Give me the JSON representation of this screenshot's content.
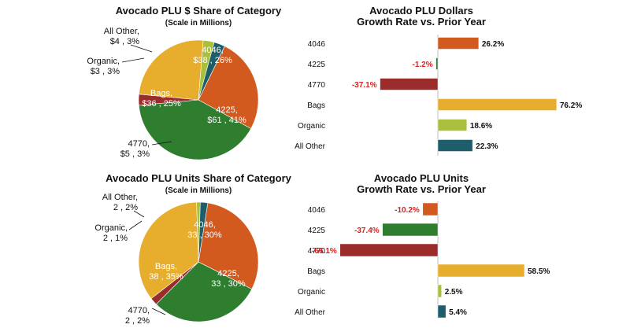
{
  "colors": {
    "4046": "#D35A1F",
    "4225": "#2F7D2F",
    "4770": "#9B2C2C",
    "Bags": "#E6AE2C",
    "Organic": "#A9C03C",
    "All Other": "#1E5E6B",
    "negative_text": "#E02020",
    "positive_text": "#111111"
  },
  "chart_data": [
    {
      "type": "pie",
      "title": "Avocado PLU $ Share of Category",
      "subtitle": "(Scale in Millions)",
      "slices": [
        {
          "name": "4046",
          "value": 38,
          "percent": 26,
          "label_line1": "4046,",
          "label_line2": "$38 , 26%"
        },
        {
          "name": "4225",
          "value": 61,
          "percent": 41,
          "label_line1": "4225,",
          "label_line2": "$61 , 41%"
        },
        {
          "name": "4770",
          "value": 5,
          "percent": 3,
          "label_line1": "4770,",
          "label_line2": "$5 , 3%"
        },
        {
          "name": "Bags",
          "value": 36,
          "percent": 25,
          "label_line1": "Bags,",
          "label_line2": "$36 , 25%"
        },
        {
          "name": "Organic",
          "value": 3,
          "percent": 3,
          "label_line1": "Organic,",
          "label_line2": "$3 , 3%"
        },
        {
          "name": "All Other",
          "value": 4,
          "percent": 3,
          "label_line1": "All Other,",
          "label_line2": "$4 , 3%"
        }
      ]
    },
    {
      "type": "bar",
      "orientation": "horizontal",
      "title_line1": "Avocado PLU Dollars",
      "title_line2": "Growth Rate vs. Prior Year",
      "categories": [
        "4046",
        "4225",
        "4770",
        "Bags",
        "Organic",
        "All Other"
      ],
      "values": [
        26.2,
        -1.2,
        -37.1,
        76.2,
        18.6,
        22.3
      ],
      "value_labels": [
        "26.2%",
        "-1.2%",
        "-37.1%",
        "76.2%",
        "18.6%",
        "22.3%"
      ]
    },
    {
      "type": "pie",
      "title": "Avocado PLU Units Share of Category",
      "subtitle": "(Scale in Millions)",
      "slices": [
        {
          "name": "4046",
          "value": 33,
          "percent": 30,
          "label_line1": "4046,",
          "label_line2": "33 , 30%"
        },
        {
          "name": "4225",
          "value": 33,
          "percent": 30,
          "label_line1": "4225,",
          "label_line2": "33 , 30%"
        },
        {
          "name": "4770",
          "value": 2,
          "percent": 2,
          "label_line1": "4770,",
          "label_line2": "2 , 2%"
        },
        {
          "name": "Bags",
          "value": 38,
          "percent": 35,
          "label_line1": "Bags,",
          "label_line2": "38 , 35%"
        },
        {
          "name": "Organic",
          "value": 2,
          "percent": 1,
          "label_line1": "Organic,",
          "label_line2": "2 , 1%"
        },
        {
          "name": "All Other",
          "value": 2,
          "percent": 2,
          "label_line1": "All Other,",
          "label_line2": "2 , 2%"
        }
      ]
    },
    {
      "type": "bar",
      "orientation": "horizontal",
      "title_line1": "Avocado PLU Units",
      "title_line2": "Growth Rate vs. Prior Year",
      "categories": [
        "4046",
        "4225",
        "4770",
        "Bags",
        "Organic",
        "All Other"
      ],
      "values": [
        -10.2,
        -37.4,
        -66.1,
        58.5,
        2.5,
        5.4
      ],
      "value_labels": [
        "-10.2%",
        "-37.4%",
        "-66.1%",
        "58.5%",
        "2.5%",
        "5.4%"
      ]
    }
  ]
}
